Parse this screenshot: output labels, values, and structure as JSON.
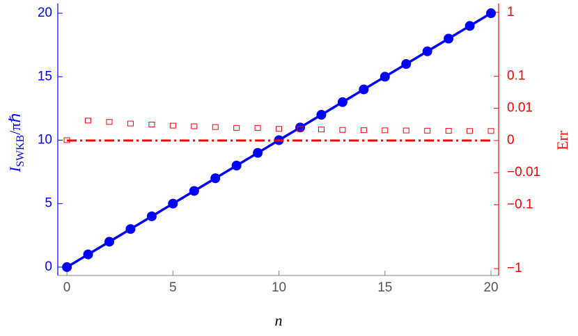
{
  "chart_data": {
    "type": "line",
    "x": [
      0,
      1,
      2,
      3,
      4,
      5,
      6,
      7,
      8,
      9,
      10,
      11,
      12,
      13,
      14,
      15,
      16,
      17,
      18,
      19,
      20
    ],
    "xlabel": "n",
    "ylabel": {
      "main": "I",
      "sub": "SWKB",
      "rest": "/πℏ"
    },
    "y2label": "Err",
    "xlim": [
      -0.43,
      20.36
    ],
    "xticks": [
      0,
      5,
      10,
      15,
      20
    ],
    "ylim": [
      -0.66,
      20.77
    ],
    "yticks": [
      0,
      5,
      10,
      15,
      20
    ],
    "y2lim": [
      -1.19,
      1.25
    ],
    "y2scale": "power",
    "y2power": 0.3,
    "y2ticks": [
      1,
      0.1,
      0.01,
      0,
      {
        "value": -0.01,
        "label": "−0.01"
      },
      {
        "value": -0.1,
        "label": "−0.1"
      },
      {
        "value": -1,
        "label": "−1"
      }
    ],
    "axis_colors": {
      "y": "#0000ff",
      "y2": "#ff0000",
      "x": "#808080"
    },
    "series": [
      {
        "color": "#0000ff",
        "marker": "circle",
        "line": "solid",
        "values": [
          0,
          1,
          2,
          3,
          4,
          5,
          6,
          7,
          8,
          9,
          10,
          11,
          12,
          13,
          14,
          15,
          16,
          17,
          18,
          19,
          20
        ]
      },
      {
        "color": "#ff0000",
        "axis": "y2",
        "marker": "square",
        "line": "none",
        "values": [
          0,
          0.0019,
          0.0015,
          0.0011,
          0.0009,
          0.0007,
          0.0006,
          0.0005,
          0.0004,
          0.0004,
          0.0003,
          0.0003,
          0.00025,
          0.00022,
          0.0002,
          0.00019,
          0.00018,
          0.00017,
          0.00016,
          0.00015,
          0.00015
        ]
      },
      {
        "color": "#ff0000",
        "axis": "y2",
        "marker": "none",
        "line": "dashdot",
        "values": [
          0,
          0,
          0,
          0,
          0,
          0,
          0,
          0,
          0,
          0,
          0,
          0,
          0,
          0,
          0,
          0,
          0,
          0,
          0,
          0,
          0
        ]
      }
    ]
  }
}
